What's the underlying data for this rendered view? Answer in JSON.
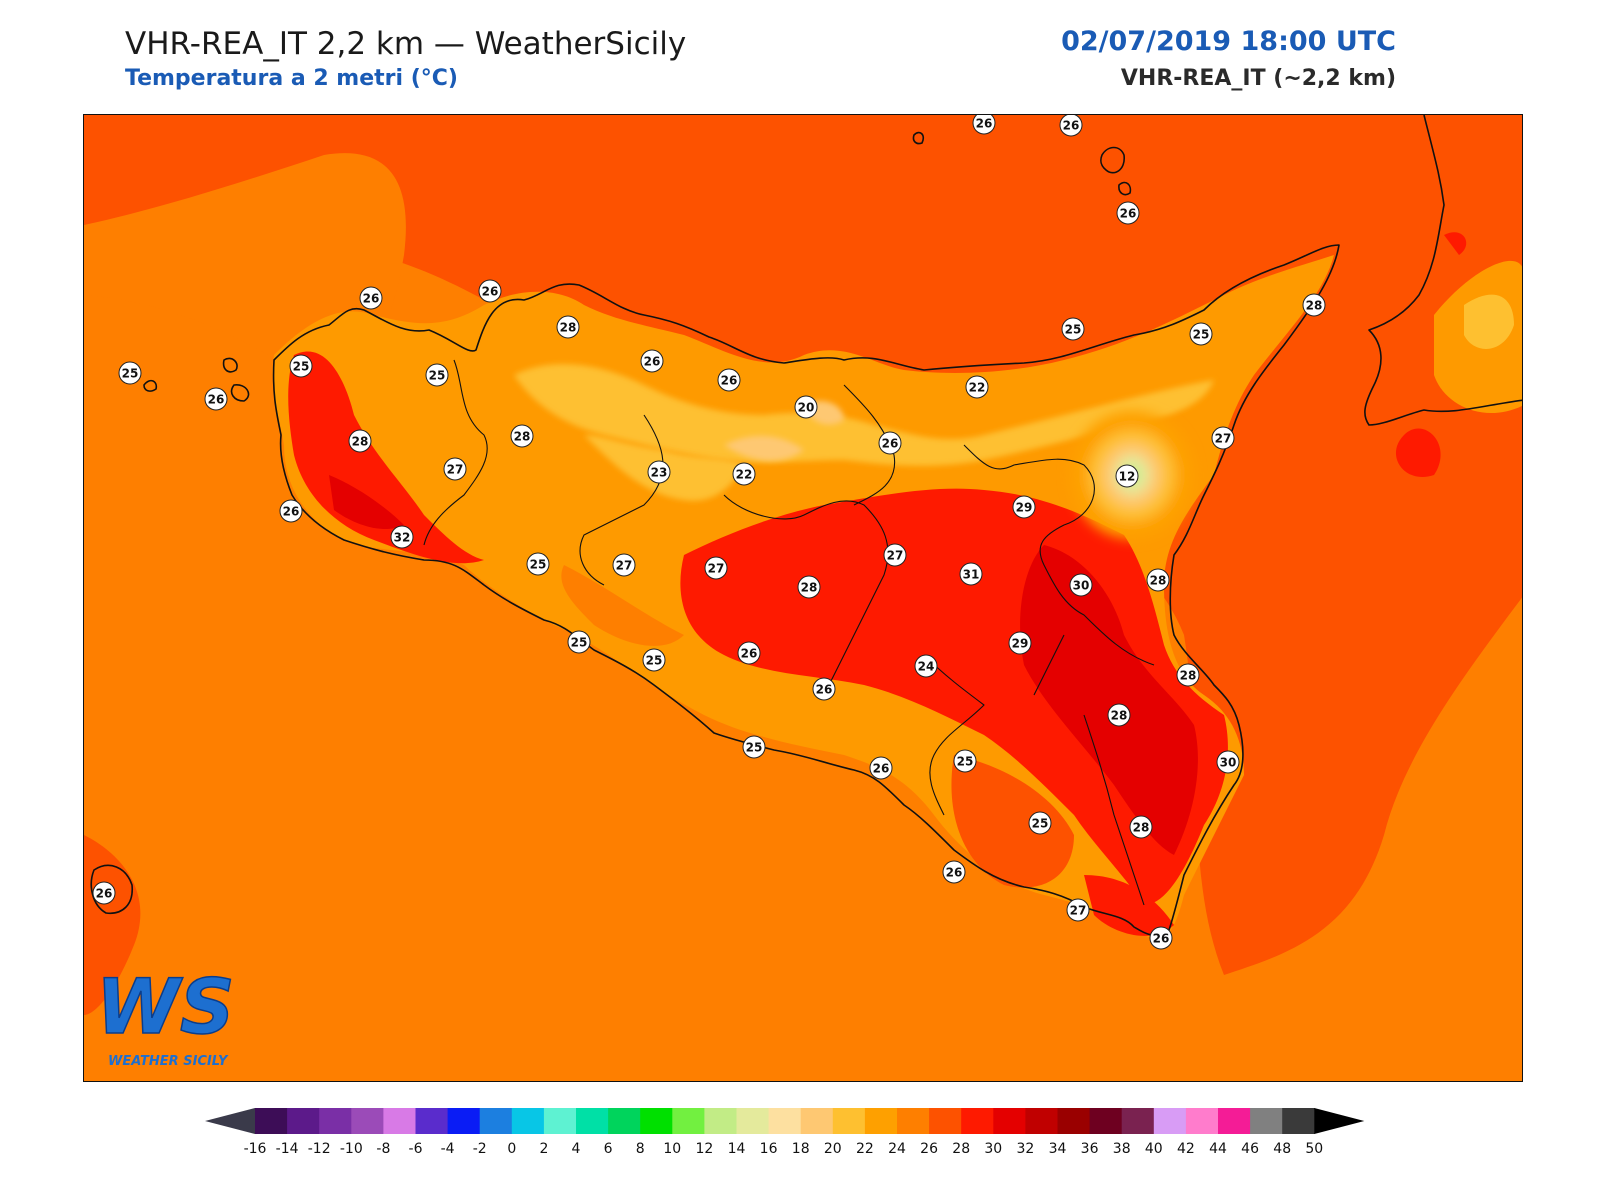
{
  "header": {
    "title_left": "VHR-REA_IT 2,2 km — WeatherSicily",
    "subtitle_left": "Temperatura a 2 metri (°C)",
    "datetime": "02/07/2019 18:00 UTC",
    "model": "VHR-REA_IT (~2,2 km)"
  },
  "logo": {
    "initials": "WS",
    "name": "WEATHER SICILY"
  },
  "colors": {
    "sea_warm": "#fe7f00",
    "sea_hot": "#fd5200",
    "land_22": "#fec030",
    "land_24": "#fe9a00",
    "land_30": "#fe1a00",
    "land_32": "#e40000",
    "coastline": "#111111"
  },
  "stations": [
    {
      "id": "s01",
      "value": "26"
    },
    {
      "id": "s02",
      "value": "26"
    },
    {
      "id": "s03",
      "value": "26"
    },
    {
      "id": "s04",
      "value": "26"
    },
    {
      "id": "s05",
      "value": "26"
    },
    {
      "id": "s06",
      "value": "28"
    },
    {
      "id": "s07",
      "value": "25"
    },
    {
      "id": "s08",
      "value": "26"
    },
    {
      "id": "s09",
      "value": "25"
    },
    {
      "id": "s10",
      "value": "25"
    },
    {
      "id": "s11",
      "value": "28"
    },
    {
      "id": "s12",
      "value": "26"
    },
    {
      "id": "s13",
      "value": "26"
    },
    {
      "id": "s14",
      "value": "20"
    },
    {
      "id": "s15",
      "value": "22"
    },
    {
      "id": "s16",
      "value": "25"
    },
    {
      "id": "s17",
      "value": "25"
    },
    {
      "id": "s18",
      "value": "26"
    },
    {
      "id": "s19",
      "value": "27"
    },
    {
      "id": "s20",
      "value": "28"
    },
    {
      "id": "s21",
      "value": "28"
    },
    {
      "id": "s22",
      "value": "27"
    },
    {
      "id": "s23",
      "value": "23"
    },
    {
      "id": "s24",
      "value": "22"
    },
    {
      "id": "s25",
      "value": "12"
    },
    {
      "id": "s26",
      "value": "29"
    },
    {
      "id": "s27",
      "value": "26"
    },
    {
      "id": "s28",
      "value": "32"
    },
    {
      "id": "s29",
      "value": "25"
    },
    {
      "id": "s30",
      "value": "27"
    },
    {
      "id": "s31",
      "value": "27"
    },
    {
      "id": "s32",
      "value": "27"
    },
    {
      "id": "s33",
      "value": "31"
    },
    {
      "id": "s34",
      "value": "30"
    },
    {
      "id": "s35",
      "value": "28"
    },
    {
      "id": "s36",
      "value": "28"
    },
    {
      "id": "s37",
      "value": "25"
    },
    {
      "id": "s38",
      "value": "25"
    },
    {
      "id": "s39",
      "value": "26"
    },
    {
      "id": "s40",
      "value": "29"
    },
    {
      "id": "s41",
      "value": "24"
    },
    {
      "id": "s42",
      "value": "26"
    },
    {
      "id": "s43",
      "value": "28"
    },
    {
      "id": "s44",
      "value": "28"
    },
    {
      "id": "s45",
      "value": "25"
    },
    {
      "id": "s46",
      "value": "26"
    },
    {
      "id": "s47",
      "value": "25"
    },
    {
      "id": "s48",
      "value": "30"
    },
    {
      "id": "s49",
      "value": "25"
    },
    {
      "id": "s50",
      "value": "28"
    },
    {
      "id": "s51",
      "value": "26"
    },
    {
      "id": "s52",
      "value": "27"
    },
    {
      "id": "s53",
      "value": "26"
    },
    {
      "id": "s54",
      "value": "26"
    }
  ],
  "colorbar": {
    "ticks": [
      "-16",
      "-14",
      "-12",
      "-10",
      "-8",
      "-6",
      "-4",
      "-2",
      "0",
      "2",
      "4",
      "6",
      "8",
      "10",
      "12",
      "14",
      "16",
      "18",
      "20",
      "22",
      "24",
      "26",
      "28",
      "30",
      "32",
      "34",
      "36",
      "38",
      "40",
      "42",
      "44",
      "46",
      "48",
      "50"
    ],
    "under_color": "#3a3a4a",
    "over_color": "#000000",
    "colors": [
      "#3d0d57",
      "#5c1a8a",
      "#7a2fa6",
      "#9b4bb8",
      "#d87ae6",
      "#5a2ccc",
      "#0a1cf5",
      "#1c7fe0",
      "#08c6e6",
      "#5ef2d2",
      "#00e0a6",
      "#00d45c",
      "#00e000",
      "#72f040",
      "#c2ec86",
      "#e4ea9c",
      "#fde0a0",
      "#fec872",
      "#fec030",
      "#fea000",
      "#fe7f00",
      "#fd5200",
      "#fe1a00",
      "#e40000",
      "#c00000",
      "#9a0000",
      "#6e0020",
      "#7a2250",
      "#d89cf5",
      "#ff7ccc",
      "#f41c96",
      "#808080",
      "#3a3a3a"
    ]
  }
}
